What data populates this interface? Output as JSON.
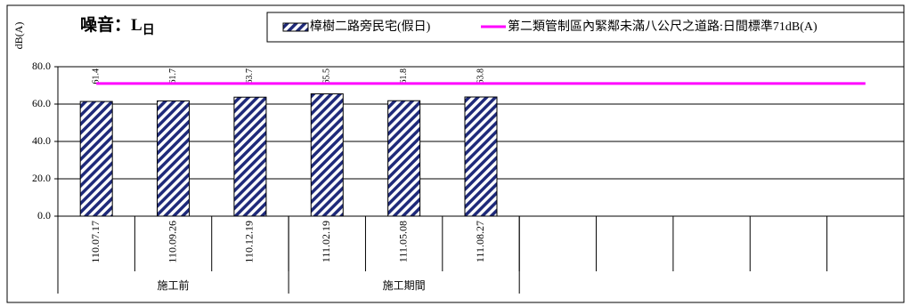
{
  "chart_data": {
    "type": "bar",
    "title": "噪音：L",
    "title_subscript": "日",
    "y_label": "dB(A)",
    "categories": [
      "110.07.17",
      "110.09.26",
      "110.12.19",
      "111.02.19",
      "111.05.08",
      "111.08.27",
      null,
      null,
      null,
      null,
      null
    ],
    "groups": [
      {
        "label": "施工前",
        "span": 3
      },
      {
        "label": "施工期間",
        "span": 3
      },
      {
        "label": null,
        "span": 5
      }
    ],
    "series": [
      {
        "name": "樟樹二路旁民宅(假日)",
        "color": "#1f2a7a",
        "type": "bar",
        "values": [
          61.4,
          61.7,
          63.7,
          65.5,
          61.8,
          63.8,
          null,
          null,
          null,
          null,
          null
        ]
      },
      {
        "name": "第二類管制區內緊鄰未滿八公尺之道路:日間標準71dB(A)",
        "color": "#ff00ff",
        "type": "line",
        "values": [
          71,
          71,
          71,
          71,
          71,
          71,
          71,
          71,
          71,
          71,
          71
        ]
      }
    ],
    "ylim": [
      0,
      80
    ],
    "yticks": [
      {
        "value": 0,
        "label": "0.0"
      },
      {
        "value": 20,
        "label": "20.0"
      },
      {
        "value": 40,
        "label": "40.0"
      },
      {
        "value": 60,
        "label": "60.0"
      },
      {
        "value": 80,
        "label": "80.0"
      }
    ],
    "grid": true
  }
}
